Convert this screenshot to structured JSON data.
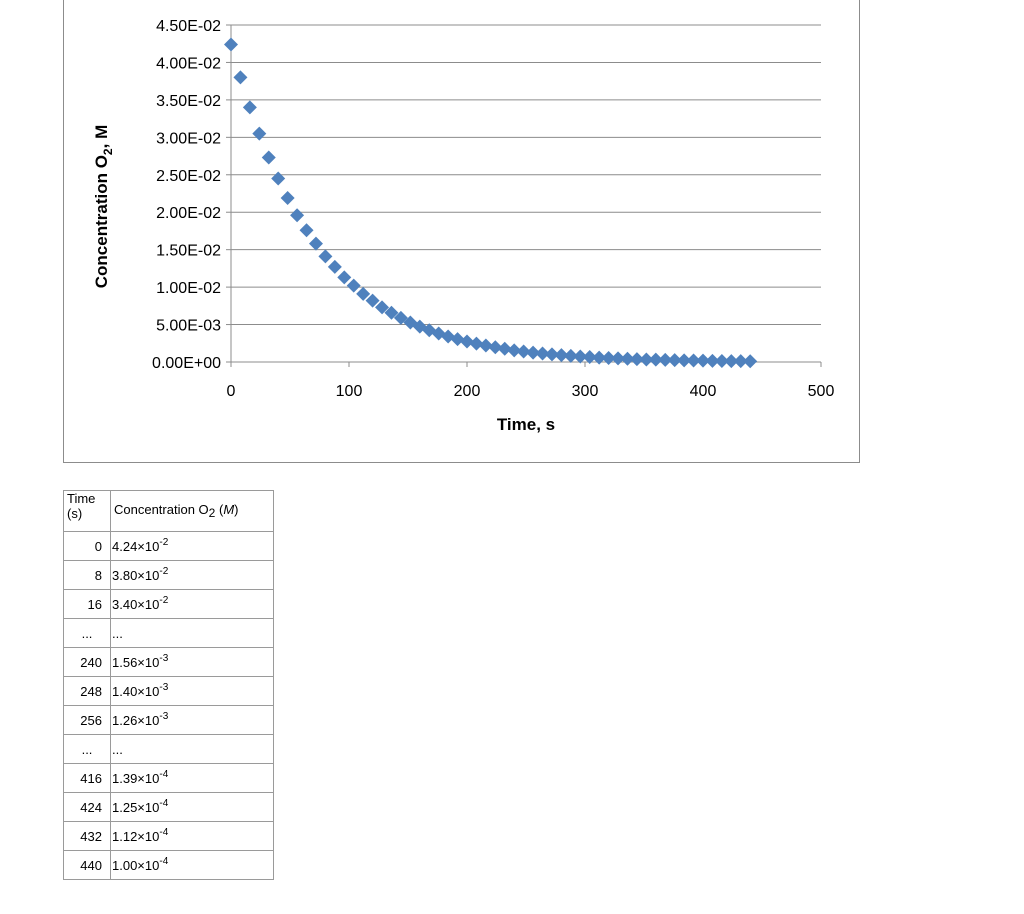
{
  "chart_data": {
    "type": "scatter",
    "title": "",
    "xlabel": "Time, s",
    "ylabel_main": "Concentration O",
    "ylabel_sub": "2",
    "ylabel_tail": ", M",
    "xlim": [
      0,
      500
    ],
    "ylim": [
      0,
      0.045
    ],
    "x_ticks": [
      0,
      100,
      200,
      300,
      400,
      500
    ],
    "x_tick_labels": [
      "0",
      "100",
      "200",
      "300",
      "400",
      "500"
    ],
    "y_ticks": [
      0,
      0.005,
      0.01,
      0.015,
      0.02,
      0.025,
      0.03,
      0.035,
      0.04,
      0.045
    ],
    "y_tick_labels": [
      "0.00E+00",
      "5.00E-03",
      "1.00E-02",
      "1.50E-02",
      "2.00E-02",
      "2.50E-02",
      "3.00E-02",
      "3.50E-02",
      "4.00E-02",
      "4.50E-02"
    ],
    "grid": "horizontal",
    "legend": "none",
    "marker": "diamond",
    "color": "#4f81bd",
    "series": [
      {
        "x": [
          0,
          8,
          16,
          24,
          32,
          40,
          48,
          56,
          64,
          72,
          80,
          88,
          96,
          104,
          112,
          120,
          128,
          136,
          144,
          152,
          160,
          168,
          176,
          184,
          192,
          200,
          208,
          216,
          224,
          232,
          240,
          248,
          256,
          264,
          272,
          280,
          288,
          296,
          304,
          312,
          320,
          328,
          336,
          344,
          352,
          360,
          368,
          376,
          384,
          392,
          400,
          408,
          416,
          424,
          432,
          440
        ],
        "y": [
          0.0424,
          0.038,
          0.034,
          0.0305,
          0.0273,
          0.0245,
          0.0219,
          0.0196,
          0.0176,
          0.0158,
          0.0141,
          0.0127,
          0.0113,
          0.0102,
          0.0091,
          0.0082,
          0.0073,
          0.00657,
          0.00589,
          0.00528,
          0.00473,
          0.00424,
          0.0038,
          0.00341,
          0.00306,
          0.00274,
          0.00246,
          0.0022,
          0.00197,
          0.00177,
          0.00156,
          0.0014,
          0.00126,
          0.00114,
          0.00102,
          0.00092,
          0.00082,
          0.00074,
          0.00066,
          0.00059,
          0.00053,
          0.00048,
          0.00043,
          0.00038,
          0.00034,
          0.00031,
          0.00028,
          0.00025,
          0.00022,
          0.0002,
          0.00018,
          0.000155,
          0.000139,
          0.000125,
          0.000112,
          0.0001
        ]
      }
    ]
  },
  "table": {
    "header_time": "Time (s)",
    "header_conc_main": "Concentration O",
    "header_conc_sub": "2",
    "header_conc_unit": "M",
    "rows": [
      {
        "time": "0",
        "mant": "4.24×10",
        "exp": "-2"
      },
      {
        "time": "8",
        "mant": "3.80×10",
        "exp": "-2"
      },
      {
        "time": "16",
        "mant": "3.40×10",
        "exp": "-2"
      },
      {
        "time": "...",
        "mant": "...",
        "exp": ""
      },
      {
        "time": "240",
        "mant": "1.56×10",
        "exp": "-3"
      },
      {
        "time": "248",
        "mant": "1.40×10",
        "exp": "-3"
      },
      {
        "time": "256",
        "mant": "1.26×10",
        "exp": "-3"
      },
      {
        "time": "...",
        "mant": "...",
        "exp": ""
      },
      {
        "time": "416",
        "mant": "1.39×10",
        "exp": "-4"
      },
      {
        "time": "424",
        "mant": "1.25×10",
        "exp": "-4"
      },
      {
        "time": "432",
        "mant": "1.12×10",
        "exp": "-4"
      },
      {
        "time": "440",
        "mant": "1.00×10",
        "exp": "-4"
      }
    ]
  }
}
